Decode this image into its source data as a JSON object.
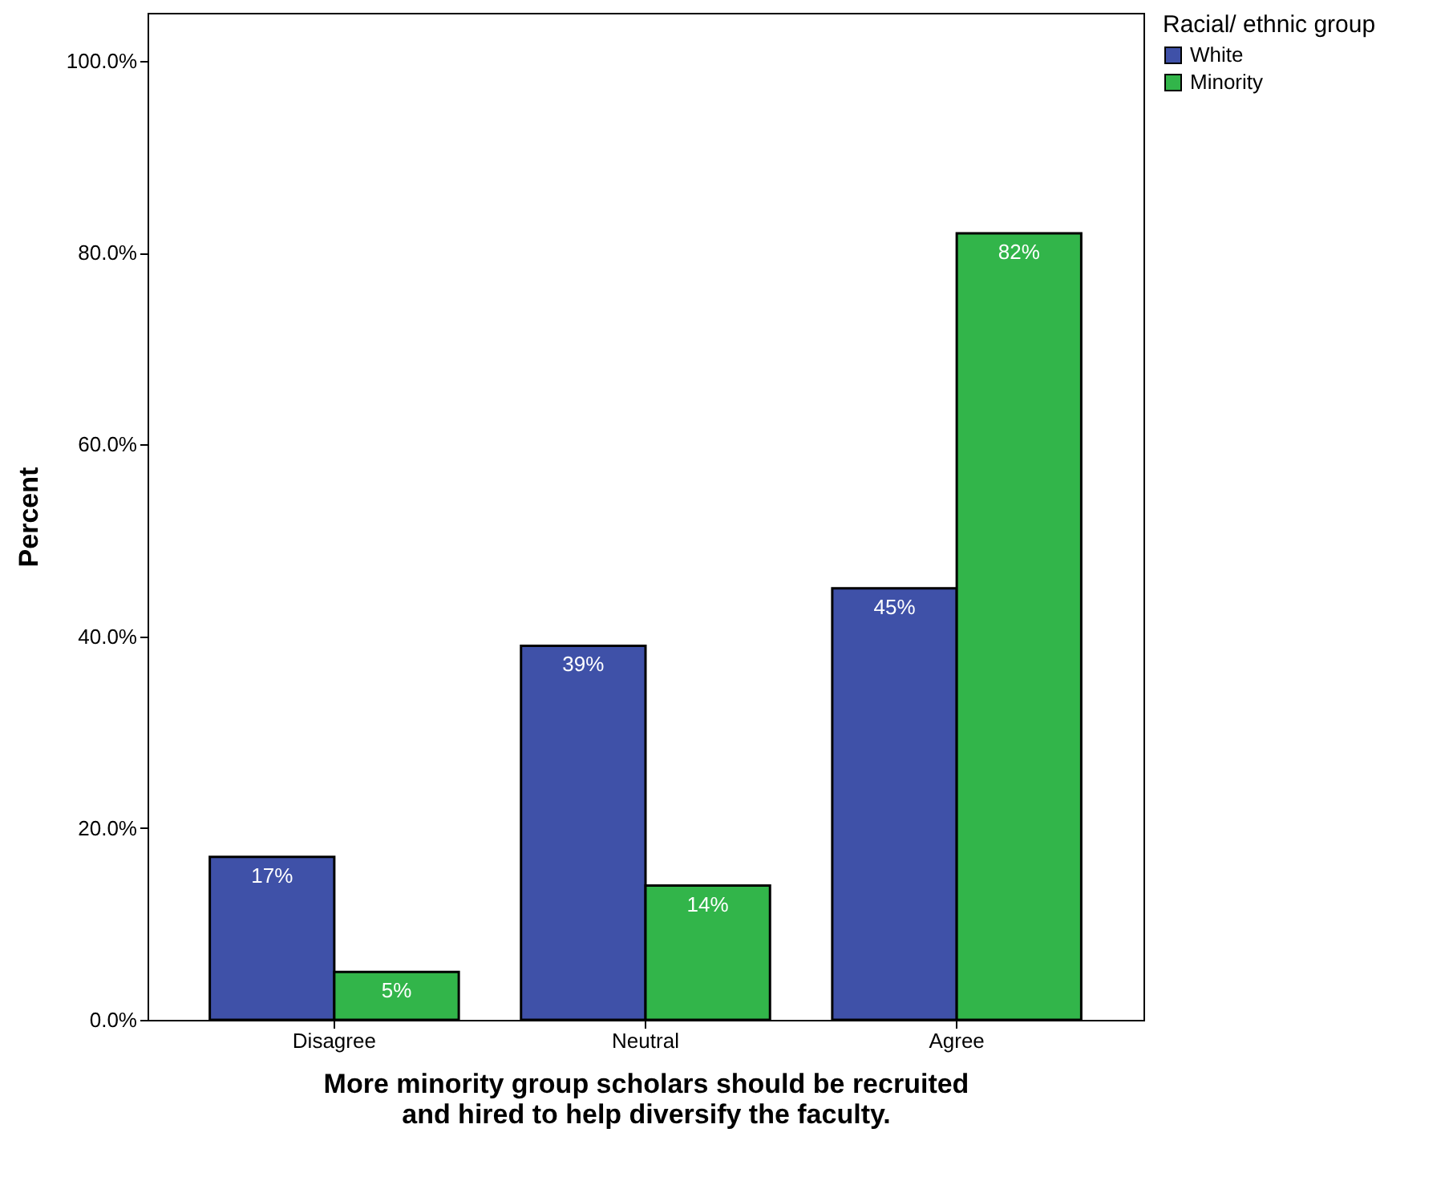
{
  "chart_data": {
    "type": "bar",
    "categories": [
      "Disagree",
      "Neutral",
      "Agree"
    ],
    "series": [
      {
        "name": "White",
        "color": "#3f51a8",
        "values": [
          17,
          39,
          45
        ],
        "value_labels": [
          "17%",
          "39%",
          "45%"
        ]
      },
      {
        "name": "Minority",
        "color": "#32b54a",
        "values": [
          5,
          14,
          82
        ],
        "value_labels": [
          "5%",
          "14%",
          "82%"
        ]
      }
    ],
    "xlabel": "More minority group scholars should be recruited and hired to help diversify the faculty.",
    "ylabel": "Percent",
    "legend_title": "Racial/ ethnic group",
    "legend": "top right",
    "ylim": [
      0,
      105
    ],
    "yticks": [
      {
        "value": 0,
        "label": "0.0%"
      },
      {
        "value": 20,
        "label": "20.0%"
      },
      {
        "value": 40,
        "label": "40.0%"
      },
      {
        "value": 60,
        "label": "60.0%"
      },
      {
        "value": 80,
        "label": "80.0%"
      },
      {
        "value": 100,
        "label": "100.0%"
      }
    ]
  }
}
